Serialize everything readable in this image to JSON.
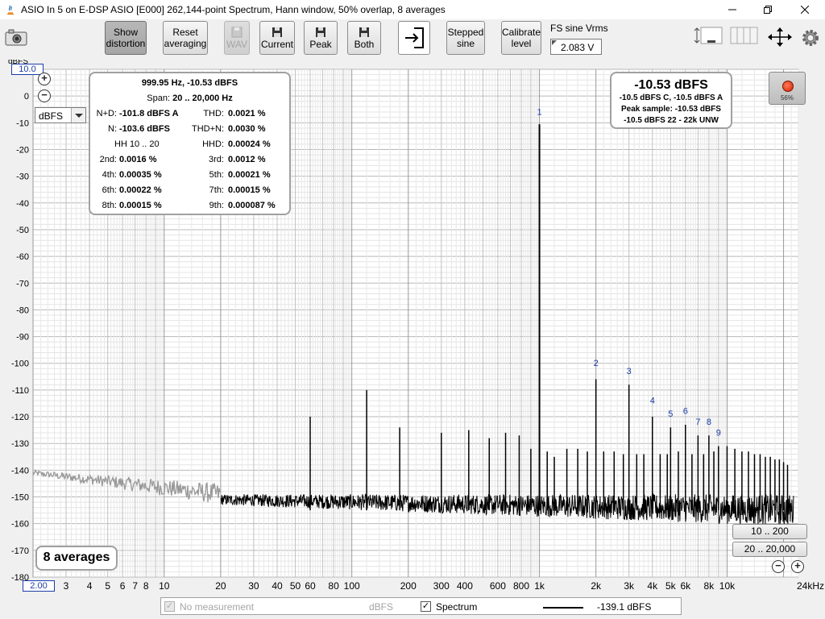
{
  "window": {
    "title": "ASIO In 5 on E-DSP ASIO [E000] 262,144-point Spectrum, Hann window, 50% overlap, 8 averages"
  },
  "toolbar": {
    "show_distortion": [
      "Show",
      "distortion"
    ],
    "reset_averaging": [
      "Reset",
      "averaging"
    ],
    "wav_label": "WAV",
    "current_label": "Current",
    "peak_label": "Peak",
    "both_label": "Both",
    "stepped_sine": [
      "Stepped",
      "sine"
    ],
    "calibrate_level": [
      "Calibrate",
      "level"
    ],
    "fs_sine_label": "FS sine Vrms",
    "fs_sine_value": "2.083 V"
  },
  "plot": {
    "y_unit_label": "dBFS",
    "y_top_value": "10.0",
    "y_bottom_value": "2.00",
    "unit_select": "dBFS",
    "y_ticks": [
      "0",
      "-10",
      "-20",
      "-30",
      "-40",
      "-50",
      "-60",
      "-70",
      "-80",
      "-90",
      "-100",
      "-110",
      "-120",
      "-130",
      "-140",
      "-150",
      "-160",
      "-170",
      "-180"
    ],
    "x_ticks": [
      "3",
      "4",
      "5",
      "6",
      "7",
      "8",
      "10",
      "20",
      "30",
      "40",
      "50",
      "60",
      "80",
      "100",
      "200",
      "300",
      "400",
      "600",
      "800",
      "1k",
      "2k",
      "3k",
      "4k",
      "5k",
      "6k",
      "8k",
      "10k"
    ],
    "x_end_label": "24kHz",
    "harmonic_labels": [
      "1",
      "2",
      "3",
      "4",
      "5",
      "6",
      "7",
      "8",
      "9"
    ],
    "colors": {
      "trace": "#000000",
      "trace_low": "#999999",
      "harmonic_label": "#1b3ea8",
      "grid": "#c8c8c8"
    }
  },
  "info_box": {
    "freq_level": "999.95 Hz, -10.53 dBFS",
    "span_label": "Span:",
    "span_value": "20 .. 20,000 Hz",
    "rows": [
      {
        "l1": "N+D:",
        "v1": "-101.8 dBFS A",
        "l2": "THD:",
        "v2": "0.0021 %"
      },
      {
        "l1": "N:",
        "v1": "-103.6 dBFS",
        "l2": "THD+N:",
        "v2": "0.0030 %"
      },
      {
        "l1": "HH 10 .. 20",
        "v1": "",
        "l2": "HHD:",
        "v2": "0.00024 %"
      },
      {
        "l1": "2nd:",
        "v1": "0.0016 %",
        "l2": "3rd:",
        "v2": "0.0012 %"
      },
      {
        "l1": "4th:",
        "v1": "0.00035 %",
        "l2": "5th:",
        "v2": "0.00021 %"
      },
      {
        "l1": "6th:",
        "v1": "0.00022 %",
        "l2": "7th:",
        "v2": "0.00015 %"
      },
      {
        "l1": "8th:",
        "v1": "0.00015 %",
        "l2": "9th:",
        "v2": "0.000087 %"
      }
    ]
  },
  "peak_box": {
    "level": "-10.53 dBFS",
    "weighted": "-10.5 dBFS C, -10.5 dBFS A",
    "peak_sample": "Peak sample: -10.53 dBFS",
    "band": "-10.5 dBFS 22 - 22k UNW"
  },
  "record": {
    "percent": "56%"
  },
  "averages_label": "8 averages",
  "range_buttons": [
    "10 .. 200",
    "20 .. 20,000"
  ],
  "legend": {
    "no_measurement": "No measurement",
    "unit": "dBFS",
    "spectrum": "Spectrum",
    "value": "-139.1 dBFS"
  }
}
